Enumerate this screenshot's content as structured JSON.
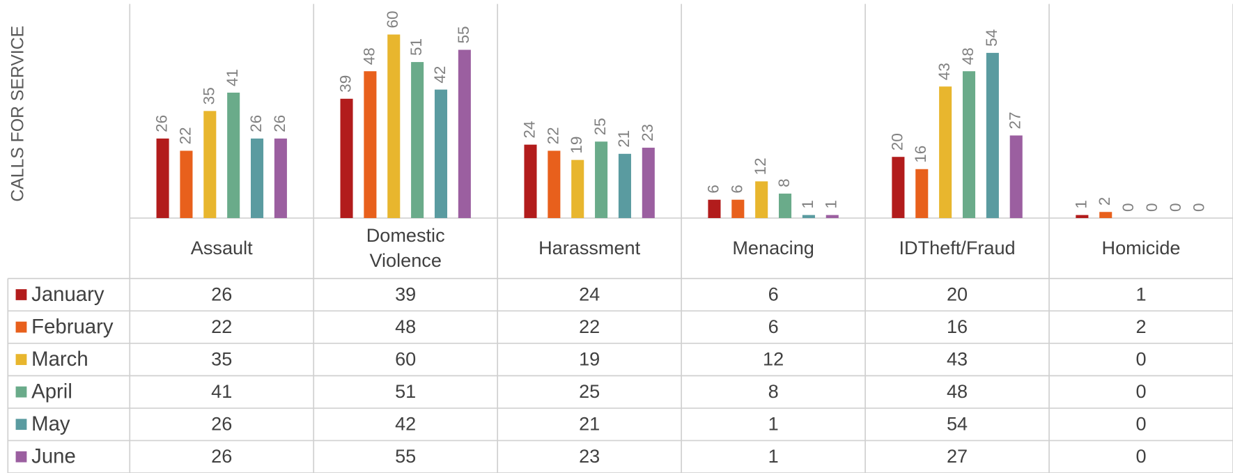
{
  "chart_data": {
    "type": "bar",
    "y_label": "CALLS FOR SERVICE",
    "categories": [
      "Assault",
      "Domestic Violence",
      "Harassment",
      "Menacing",
      "IDTheft/Fraud",
      "Homicide"
    ],
    "series": [
      {
        "name": "January",
        "color": "#b21c1c",
        "values": [
          26,
          39,
          24,
          6,
          20,
          1
        ]
      },
      {
        "name": "February",
        "color": "#e8601c",
        "values": [
          22,
          48,
          22,
          6,
          16,
          2
        ]
      },
      {
        "name": "March",
        "color": "#e8b62e",
        "values": [
          35,
          60,
          19,
          12,
          43,
          0
        ]
      },
      {
        "name": "April",
        "color": "#6aab8a",
        "values": [
          41,
          51,
          25,
          8,
          48,
          0
        ]
      },
      {
        "name": "May",
        "color": "#5a9ba0",
        "values": [
          26,
          42,
          21,
          1,
          54,
          0
        ]
      },
      {
        "name": "June",
        "color": "#9b5fa0",
        "values": [
          26,
          55,
          23,
          1,
          27,
          0
        ]
      }
    ],
    "ylim": [
      0,
      70
    ],
    "data_table": true
  }
}
